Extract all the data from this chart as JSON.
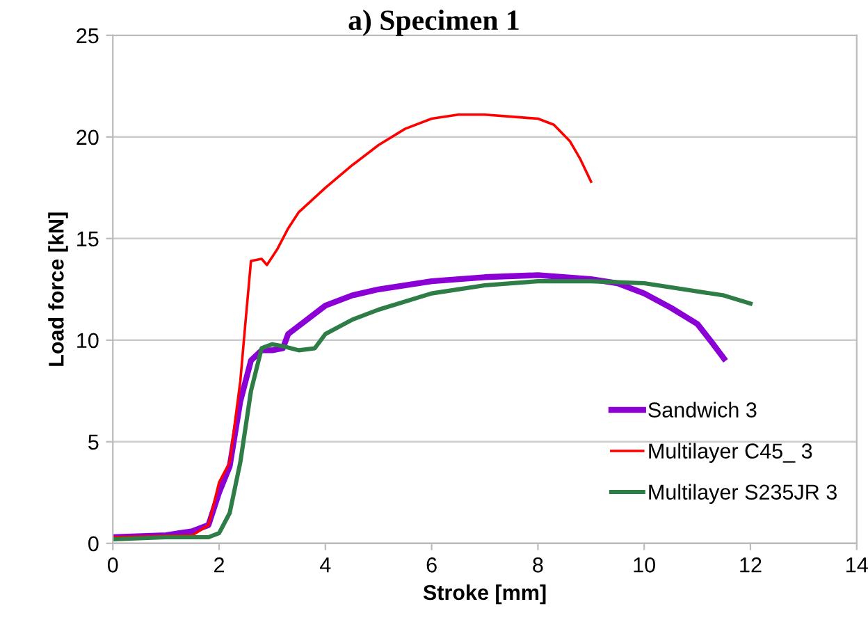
{
  "chart_data": {
    "type": "line",
    "title": "a) Specimen 1",
    "xlabel": "Stroke [mm]",
    "ylabel": "Load force [kN]",
    "xlim": [
      0,
      14
    ],
    "xticks": [
      0,
      2,
      4,
      6,
      8,
      10,
      12,
      14
    ],
    "ylim": [
      0,
      25
    ],
    "yticks": [
      0,
      5,
      10,
      15,
      20,
      25
    ],
    "grid": "y",
    "legend": "bottom right",
    "marker": "none",
    "line_style": "solid",
    "series": [
      {
        "name": "Sandwich 3",
        "color": "#8b00d4",
        "x": [
          0,
          1,
          1.5,
          1.8,
          2,
          2.2,
          2.4,
          2.6,
          2.8,
          3.0,
          3.2,
          3.3,
          3.6,
          4,
          4.5,
          5,
          6,
          7,
          8,
          9,
          9.5,
          10,
          10.5,
          11,
          11.3,
          11.5
        ],
        "values": [
          0.3,
          0.4,
          0.6,
          0.9,
          2.5,
          3.8,
          7,
          9,
          9.5,
          9.5,
          9.6,
          10.3,
          10.9,
          11.7,
          12.2,
          12.5,
          12.9,
          13.1,
          13.2,
          13.0,
          12.8,
          12.3,
          11.6,
          10.8,
          9.8,
          9.1
        ]
      },
      {
        "name": "Multilayer C45_ 3",
        "color": "#ff0000",
        "x": [
          0,
          1.5,
          1.8,
          2,
          2.2,
          2.4,
          2.5,
          2.6,
          2.8,
          2.9,
          3.1,
          3.3,
          3.5,
          4,
          4.5,
          5,
          5.5,
          6,
          6.5,
          7,
          7.5,
          8,
          8.3,
          8.6,
          8.8,
          9
        ],
        "values": [
          0.3,
          0.4,
          0.9,
          3,
          4,
          8,
          11,
          13.9,
          14,
          13.7,
          14.5,
          15.5,
          16.3,
          17.5,
          18.6,
          19.6,
          20.4,
          20.9,
          21.1,
          21.1,
          21.0,
          20.9,
          20.6,
          19.8,
          18.9,
          17.8
        ]
      },
      {
        "name": "Multilayer S235JR 3",
        "color": "#2e7d46",
        "x": [
          0,
          1,
          1.8,
          2,
          2.2,
          2.4,
          2.6,
          2.8,
          3.0,
          3.2,
          3.5,
          3.8,
          4,
          4.5,
          5,
          6,
          7,
          8,
          9,
          10,
          11,
          11.5,
          12
        ],
        "values": [
          0.2,
          0.3,
          0.3,
          0.5,
          1.5,
          4,
          7.5,
          9.6,
          9.8,
          9.7,
          9.5,
          9.6,
          10.3,
          11,
          11.5,
          12.3,
          12.7,
          12.9,
          12.9,
          12.8,
          12.4,
          12.2,
          11.8
        ]
      }
    ]
  }
}
